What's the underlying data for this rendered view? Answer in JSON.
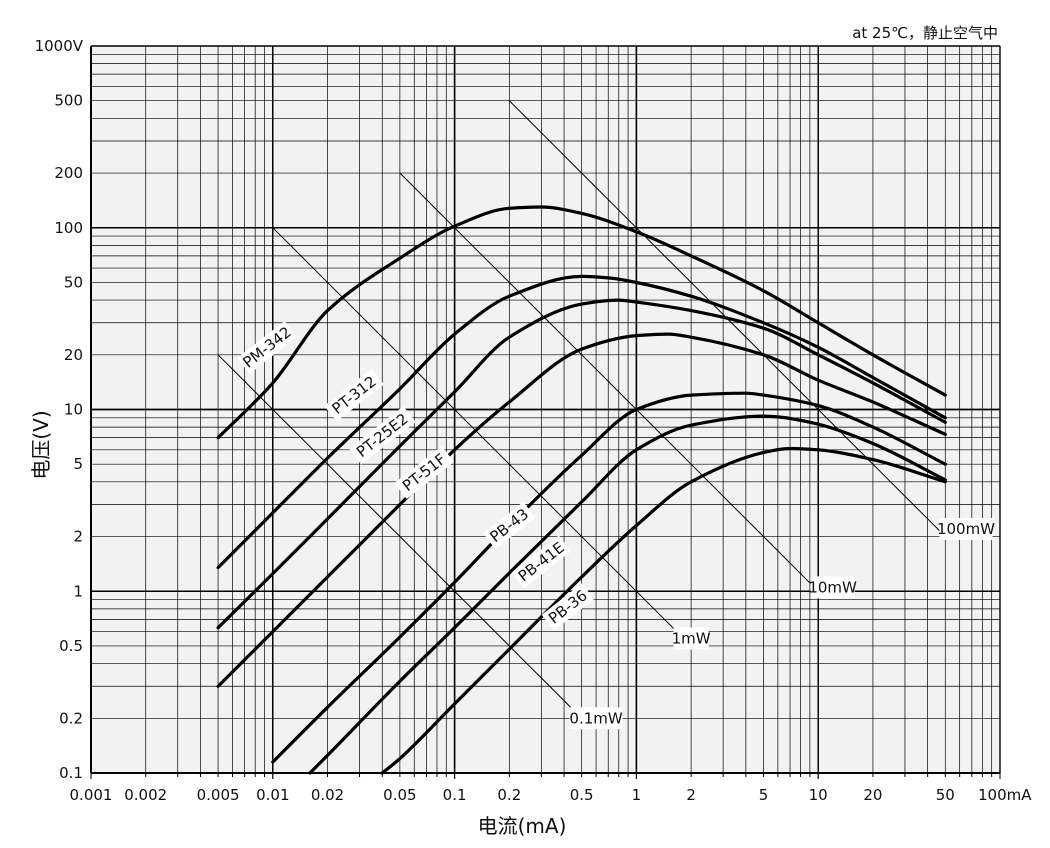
{
  "chart_data": {
    "type": "line",
    "xscale": "log",
    "yscale": "log",
    "xlim": [
      0.001,
      100
    ],
    "ylim": [
      0.1,
      1000
    ],
    "grid": true,
    "condition": "at 25℃，静止空气中",
    "xlabel": "电流(mA)",
    "ylabel": "电压(V)",
    "x_ticks": [
      {
        "v": 0.001,
        "label": "0.001"
      },
      {
        "v": 0.002,
        "label": "0.002"
      },
      {
        "v": 0.005,
        "label": "0.005"
      },
      {
        "v": 0.01,
        "label": "0.01"
      },
      {
        "v": 0.02,
        "label": "0.02"
      },
      {
        "v": 0.05,
        "label": "0.05"
      },
      {
        "v": 0.1,
        "label": "0.1"
      },
      {
        "v": 0.2,
        "label": "0.2"
      },
      {
        "v": 0.5,
        "label": "0.5"
      },
      {
        "v": 1,
        "label": "1"
      },
      {
        "v": 2,
        "label": "2"
      },
      {
        "v": 5,
        "label": "5"
      },
      {
        "v": 10,
        "label": "10"
      },
      {
        "v": 20,
        "label": "20"
      },
      {
        "v": 50,
        "label": "50"
      },
      {
        "v": 100,
        "label": "100mA"
      }
    ],
    "y_ticks": [
      {
        "v": 1000,
        "label": "1000V"
      },
      {
        "v": 500,
        "label": "500"
      },
      {
        "v": 200,
        "label": "200"
      },
      {
        "v": 100,
        "label": "100"
      },
      {
        "v": 50,
        "label": "50"
      },
      {
        "v": 20,
        "label": "20"
      },
      {
        "v": 10,
        "label": "10"
      },
      {
        "v": 5,
        "label": "5"
      },
      {
        "v": 2,
        "label": "2"
      },
      {
        "v": 1,
        "label": "1"
      },
      {
        "v": 0.5,
        "label": "0.5"
      },
      {
        "v": 0.2,
        "label": "0.2"
      },
      {
        "v": 0.1,
        "label": "0.1"
      }
    ],
    "power_lines": [
      {
        "name": "0.1mW",
        "x": [
          0.005,
          0.5
        ],
        "label_at": [
          0.6,
          0.2
        ]
      },
      {
        "name": "1mW",
        "x": [
          0.01,
          1.8
        ],
        "label_at": [
          2.0,
          0.55
        ]
      },
      {
        "name": "10mW",
        "x": [
          0.05,
          10
        ],
        "label_at": [
          12,
          1.05
        ]
      },
      {
        "name": "100mW",
        "x": [
          0.2,
          50
        ],
        "label_at": [
          65,
          2.2
        ]
      }
    ],
    "series": [
      {
        "name": "PM-342",
        "label_at": [
          0.0093,
          22
        ],
        "label_angle": -38,
        "x": [
          0.005,
          0.01,
          0.02,
          0.05,
          0.1,
          0.2,
          0.3,
          0.5,
          1,
          2,
          5,
          10,
          20,
          50
        ],
        "y": [
          7,
          14,
          35,
          68,
          102,
          128,
          130,
          120,
          95,
          70,
          45,
          30,
          20,
          12
        ]
      },
      {
        "name": "PT-312",
        "label_at": [
          0.028,
          12
        ],
        "label_angle": -38,
        "x": [
          0.005,
          0.01,
          0.02,
          0.05,
          0.1,
          0.2,
          0.5,
          0.7,
          1,
          2,
          5,
          10,
          20,
          50
        ],
        "y": [
          1.35,
          2.7,
          5.4,
          13,
          26,
          42,
          54,
          53,
          50,
          42,
          30,
          22,
          15,
          9
        ]
      },
      {
        "name": "PT-25E2",
        "label_at": [
          0.04,
          7.2
        ],
        "label_angle": -38,
        "x": [
          0.005,
          0.01,
          0.02,
          0.05,
          0.1,
          0.2,
          0.5,
          0.8,
          1,
          2,
          5,
          10,
          20,
          50
        ],
        "y": [
          0.63,
          1.25,
          2.5,
          6.3,
          12.5,
          25,
          38,
          40,
          39,
          35,
          28,
          20,
          14,
          8.5
        ]
      },
      {
        "name": "PT-51F",
        "label_at": [
          0.068,
          4.5
        ],
        "label_angle": -38,
        "x": [
          0.005,
          0.01,
          0.02,
          0.05,
          0.1,
          0.2,
          0.5,
          1,
          1.5,
          2,
          5,
          10,
          20,
          50
        ],
        "y": [
          0.3,
          0.6,
          1.2,
          3,
          6,
          11,
          21.5,
          25.5,
          26,
          25,
          20,
          14.5,
          11,
          7.3
        ]
      },
      {
        "name": "PB-43",
        "label_at": [
          0.2,
          2.3
        ],
        "label_angle": -38,
        "x": [
          0.01,
          0.02,
          0.05,
          0.1,
          0.2,
          0.5,
          1,
          2,
          4,
          5,
          10,
          20,
          50
        ],
        "y": [
          0.115,
          0.23,
          0.56,
          1.12,
          2.3,
          5.6,
          10,
          12,
          12.3,
          12,
          10.5,
          8,
          5
        ]
      },
      {
        "name": "PB-41E",
        "label_at": [
          0.3,
          1.45
        ],
        "label_angle": -38,
        "x": [
          0.016,
          0.02,
          0.05,
          0.1,
          0.2,
          0.5,
          1,
          2,
          5,
          6,
          10,
          20,
          50
        ],
        "y": [
          0.1,
          0.125,
          0.32,
          0.63,
          1.26,
          3.1,
          6,
          8.2,
          9.2,
          9.1,
          8.3,
          6.5,
          4.1
        ]
      },
      {
        "name": "PB-36",
        "label_at": [
          0.42,
          0.82
        ],
        "label_angle": -38,
        "x": [
          0.04,
          0.05,
          0.1,
          0.2,
          0.5,
          1,
          2,
          5,
          7,
          10,
          20,
          50
        ],
        "y": [
          0.1,
          0.12,
          0.24,
          0.48,
          1.2,
          2.3,
          4,
          5.8,
          6.1,
          6,
          5.3,
          4
        ]
      }
    ]
  }
}
